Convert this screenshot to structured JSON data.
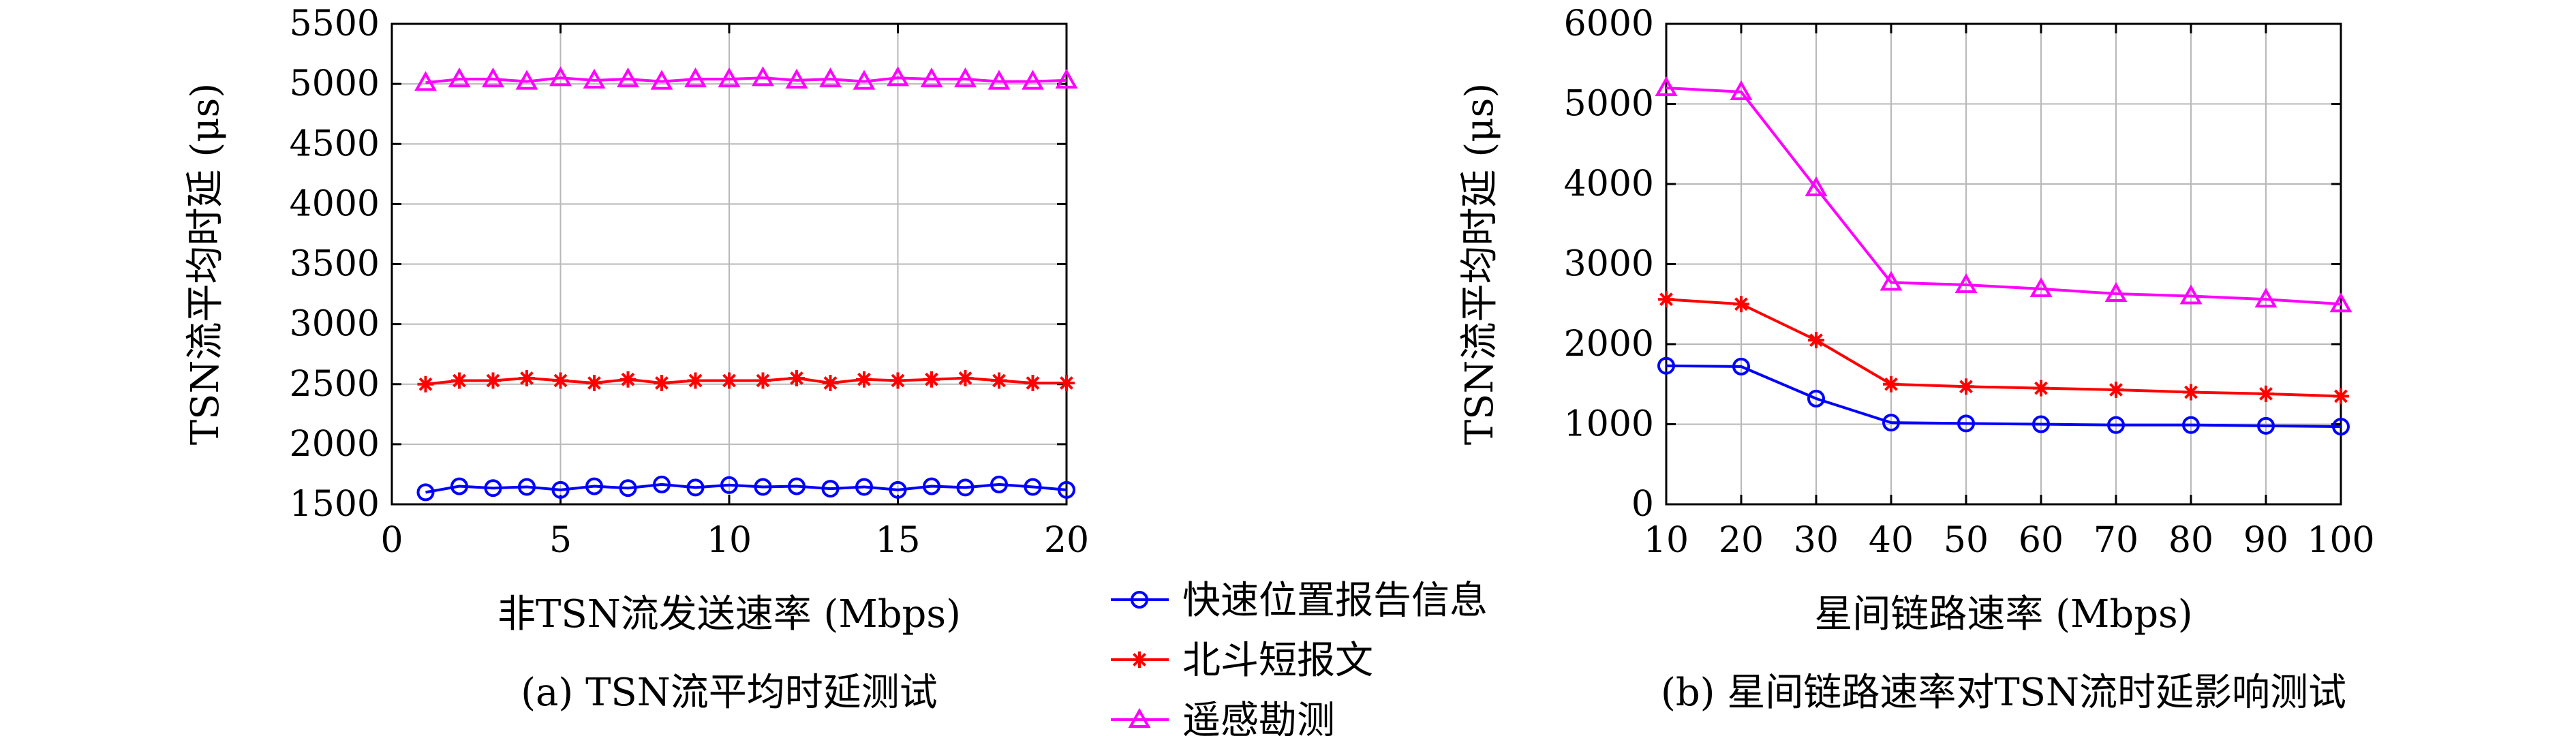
{
  "legend": {
    "placement": "center-bottom",
    "entries": [
      {
        "name": "快速位置报告信息",
        "color": "#0000ff",
        "marker": "circle"
      },
      {
        "name": "北斗短报文",
        "color": "#ff0000",
        "marker": "asterisk"
      },
      {
        "name": "遥感勘测",
        "color": "#ff00ff",
        "marker": "triangle"
      }
    ]
  },
  "chart_data": [
    {
      "type": "line",
      "caption": "(a) TSN流平均时延测试",
      "xlabel": "非TSN流发送速率 (Mbps)",
      "ylabel": "TSN流平均时延 (μs)",
      "xlim": [
        0,
        20
      ],
      "ylim": [
        1500,
        5500
      ],
      "xticks": [
        0,
        5,
        10,
        15,
        20
      ],
      "yticks": [
        1500,
        2000,
        2500,
        3000,
        3500,
        4000,
        4500,
        5000,
        5500
      ],
      "grid": true,
      "x": [
        1,
        2,
        3,
        4,
        5,
        6,
        7,
        8,
        9,
        10,
        11,
        12,
        13,
        14,
        15,
        16,
        17,
        18,
        19,
        20
      ],
      "series": [
        {
          "name": "快速位置报告信息",
          "color": "#0000ff",
          "marker": "circle",
          "values": [
            1600,
            1650,
            1635,
            1645,
            1620,
            1650,
            1635,
            1665,
            1640,
            1660,
            1645,
            1650,
            1630,
            1645,
            1620,
            1650,
            1640,
            1665,
            1645,
            1620
          ]
        },
        {
          "name": "北斗短报文",
          "color": "#ff0000",
          "marker": "asterisk",
          "values": [
            2500,
            2530,
            2530,
            2550,
            2530,
            2510,
            2540,
            2510,
            2530,
            2530,
            2530,
            2550,
            2510,
            2540,
            2530,
            2540,
            2550,
            2530,
            2510,
            2510
          ]
        },
        {
          "name": "遥感勘测",
          "color": "#ff00ff",
          "marker": "triangle",
          "values": [
            5010,
            5040,
            5040,
            5020,
            5050,
            5030,
            5040,
            5020,
            5040,
            5040,
            5050,
            5030,
            5040,
            5020,
            5050,
            5040,
            5040,
            5020,
            5020,
            5030
          ]
        }
      ]
    },
    {
      "type": "line",
      "caption": "(b) 星间链路速率对TSN流时延影响测试",
      "xlabel": "星间链路速率 (Mbps)",
      "ylabel": "TSN流平均时延 (μs)",
      "xlim": [
        10,
        100
      ],
      "ylim": [
        0,
        6000
      ],
      "xticks": [
        10,
        20,
        30,
        40,
        50,
        60,
        70,
        80,
        90,
        100
      ],
      "yticks": [
        0,
        1000,
        2000,
        3000,
        4000,
        5000,
        6000
      ],
      "grid": true,
      "x": [
        10,
        20,
        30,
        40,
        50,
        60,
        70,
        80,
        90,
        100
      ],
      "series": [
        {
          "name": "快速位置报告信息",
          "color": "#0000ff",
          "marker": "circle",
          "values": [
            1730,
            1720,
            1320,
            1020,
            1010,
            1000,
            990,
            990,
            980,
            970
          ]
        },
        {
          "name": "北斗短报文",
          "color": "#ff0000",
          "marker": "asterisk",
          "values": [
            2560,
            2500,
            2050,
            1500,
            1470,
            1450,
            1430,
            1400,
            1380,
            1350
          ]
        },
        {
          "name": "遥感勘测",
          "color": "#ff00ff",
          "marker": "triangle",
          "values": [
            5200,
            5150,
            3950,
            2770,
            2740,
            2690,
            2630,
            2600,
            2560,
            2500
          ]
        }
      ]
    }
  ]
}
